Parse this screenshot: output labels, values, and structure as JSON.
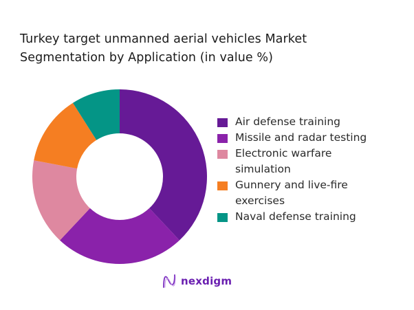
{
  "title": {
    "line1": "Turkey target unmanned aerial vehicles Market",
    "line2": "Segmentation by Application (in value %)"
  },
  "legend": {
    "items": [
      {
        "label_line1": "Air defense training",
        "label_line2": "",
        "color": "#661a96"
      },
      {
        "label_line1": "Missile and radar testing",
        "label_line2": "",
        "color": "#8a22aa"
      },
      {
        "label_line1": "Electronic warfare",
        "label_line2": "simulation",
        "color": "#de88a0"
      },
      {
        "label_line1": "Gunnery and live-fire",
        "label_line2": "exercises",
        "color": "#f57e22"
      },
      {
        "label_line1": "Naval defense training",
        "label_line2": "",
        "color": "#049586"
      }
    ]
  },
  "logo": {
    "text": "nexdigm",
    "icon": "nexdigm-wave-logo-icon"
  },
  "chart_data": {
    "type": "pie",
    "subtype": "donut",
    "title": "Turkey target unmanned aerial vehicles Market Segmentation by Application (in value %)",
    "categories": [
      "Air defense training",
      "Missile and radar testing",
      "Electronic warfare simulation",
      "Gunnery and live-fire exercises",
      "Naval defense training"
    ],
    "values": [
      38,
      24,
      16,
      13,
      9
    ],
    "colors": [
      "#661a96",
      "#8a22aa",
      "#de88a0",
      "#f57e22",
      "#049586"
    ],
    "start_angle_deg": 0,
    "direction": "clockwise",
    "legend_position": "right",
    "data_labels": false,
    "units": "%"
  }
}
